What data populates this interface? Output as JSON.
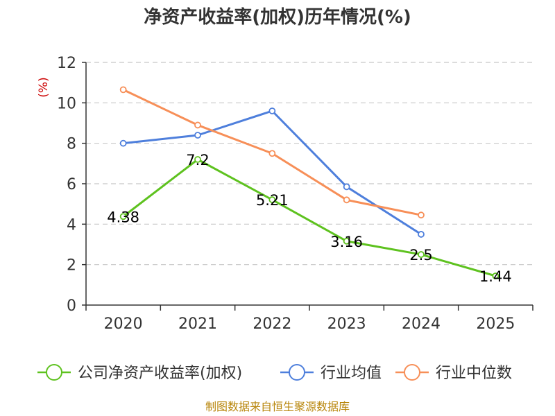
{
  "chart_data": {
    "type": "line",
    "title": "净资产收益率(加权)历年情况(%)",
    "ylabel": "(%)",
    "xlabel": "",
    "ylim": [
      0,
      12
    ],
    "yticks": [
      "0",
      "2",
      "4",
      "6",
      "8",
      "10",
      "12"
    ],
    "categories": [
      "2020",
      "2021",
      "2022",
      "2023",
      "2024",
      "2025"
    ],
    "grid": true,
    "legend_position": "bottom",
    "series": [
      {
        "name": "公司净资产收益率(加权)",
        "color": "#5ec21f",
        "values": [
          4.38,
          7.2,
          5.21,
          3.16,
          2.5,
          1.44
        ],
        "labels": [
          "4.38",
          "7.2",
          "5.21",
          "3.16",
          "2.5",
          "1.44"
        ]
      },
      {
        "name": "行业均值",
        "color": "#4e7fdc",
        "values": [
          8.0,
          8.4,
          9.6,
          5.85,
          3.5,
          null
        ]
      },
      {
        "name": "行业中位数",
        "color": "#f78f58",
        "values": [
          10.65,
          8.9,
          7.5,
          5.2,
          4.45,
          null
        ]
      }
    ],
    "source": "制图数据来自恒生聚源数据库"
  }
}
